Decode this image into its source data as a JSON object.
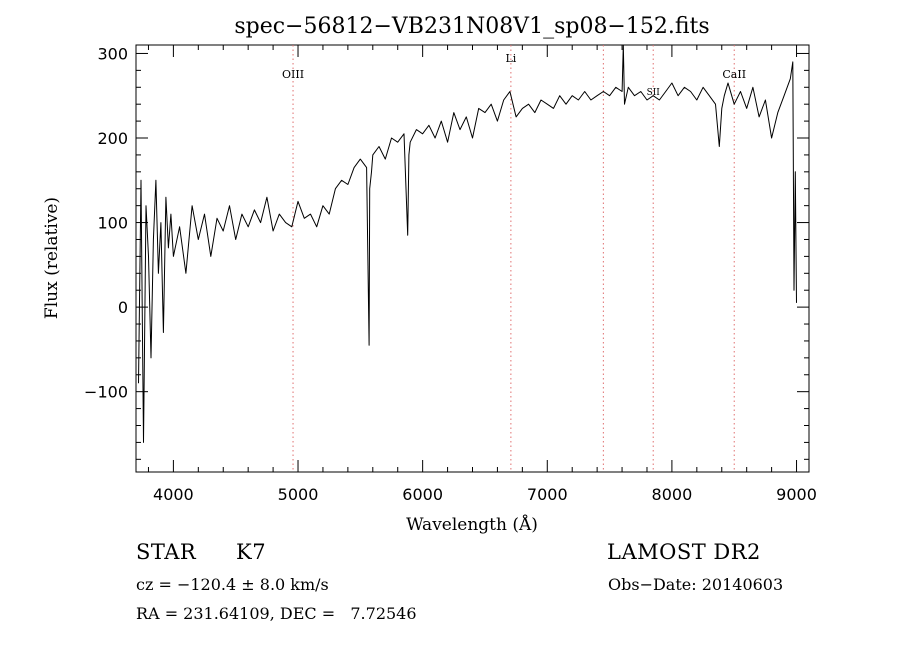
{
  "chart_data": {
    "type": "line",
    "title": "spec−56812−VB231N08V1_sp08−152.fits",
    "xlabel": "Wavelength (Å)",
    "ylabel": "Flux (relative)",
    "xlim": [
      3700,
      9100
    ],
    "ylim": [
      -195,
      310
    ],
    "xticks": [
      4000,
      5000,
      6000,
      7000,
      8000,
      9000
    ],
    "xtick_labels": [
      "4000",
      "5000",
      "6000",
      "7000",
      "8000",
      "9000"
    ],
    "yticks": [
      -100,
      0,
      100,
      200,
      300
    ],
    "ytick_labels": [
      "−100",
      "0",
      "100",
      "200",
      "300"
    ],
    "grid": false,
    "line_markers": [
      {
        "label": "OIII",
        "x": 4960
      },
      {
        "label": "Li",
        "x": 6708
      },
      {
        "label": "",
        "x": 7450
      },
      {
        "label": "",
        "x": 7850
      },
      {
        "label": "CaII",
        "x": 8500
      }
    ],
    "marker_extra_labels": [
      {
        "label": "SII",
        "x": 7850
      }
    ],
    "marker_color": "#e07070",
    "series": [
      {
        "color": "#000000",
        "x": [
          3720,
          3740,
          3760,
          3780,
          3800,
          3820,
          3840,
          3860,
          3880,
          3900,
          3920,
          3940,
          3960,
          3980,
          4000,
          4050,
          4100,
          4150,
          4200,
          4250,
          4300,
          4350,
          4400,
          4450,
          4500,
          4550,
          4600,
          4650,
          4700,
          4750,
          4800,
          4850,
          4900,
          4950,
          5000,
          5050,
          5100,
          5150,
          5200,
          5250,
          5300,
          5350,
          5400,
          5450,
          5500,
          5550,
          5570,
          5575,
          5590,
          5600,
          5650,
          5700,
          5750,
          5800,
          5850,
          5880,
          5890,
          5900,
          5950,
          6000,
          6050,
          6100,
          6150,
          6200,
          6250,
          6300,
          6350,
          6400,
          6450,
          6500,
          6550,
          6600,
          6650,
          6700,
          6750,
          6800,
          6850,
          6900,
          6950,
          7000,
          7050,
          7100,
          7150,
          7200,
          7250,
          7300,
          7350,
          7400,
          7450,
          7500,
          7550,
          7600,
          7610,
          7620,
          7650,
          7700,
          7750,
          7800,
          7850,
          7900,
          7950,
          8000,
          8050,
          8100,
          8150,
          8200,
          8250,
          8300,
          8350,
          8380,
          8400,
          8420,
          8450,
          8500,
          8550,
          8600,
          8650,
          8700,
          8750,
          8800,
          8850,
          8900,
          8950,
          8970,
          8980,
          8990,
          9000
        ],
        "y": [
          -90,
          150,
          -160,
          120,
          60,
          -60,
          80,
          150,
          40,
          100,
          -30,
          130,
          70,
          110,
          60,
          95,
          40,
          120,
          80,
          110,
          60,
          105,
          90,
          120,
          80,
          110,
          95,
          115,
          100,
          130,
          90,
          110,
          100,
          95,
          125,
          105,
          110,
          95,
          120,
          110,
          140,
          150,
          145,
          165,
          175,
          165,
          -45,
          140,
          160,
          180,
          190,
          175,
          200,
          195,
          205,
          85,
          180,
          195,
          210,
          205,
          215,
          200,
          220,
          195,
          230,
          210,
          225,
          200,
          235,
          230,
          240,
          220,
          245,
          255,
          225,
          235,
          240,
          230,
          245,
          240,
          235,
          250,
          240,
          250,
          245,
          255,
          245,
          250,
          255,
          250,
          260,
          255,
          310,
          240,
          260,
          250,
          255,
          245,
          250,
          245,
          255,
          265,
          250,
          260,
          255,
          245,
          260,
          250,
          240,
          190,
          235,
          250,
          265,
          240,
          255,
          235,
          260,
          225,
          245,
          200,
          230,
          250,
          270,
          290,
          20,
          160,
          5
        ]
      }
    ],
    "info": {
      "object_type": "STAR",
      "subclass": "K7",
      "survey": "LAMOST DR2",
      "velocity": "cz = −120.4 ± 8.0 km/s",
      "obs_date": "Obs−Date: 20140603",
      "coords": "RA = 231.64109, DEC =   7.72546"
    }
  }
}
